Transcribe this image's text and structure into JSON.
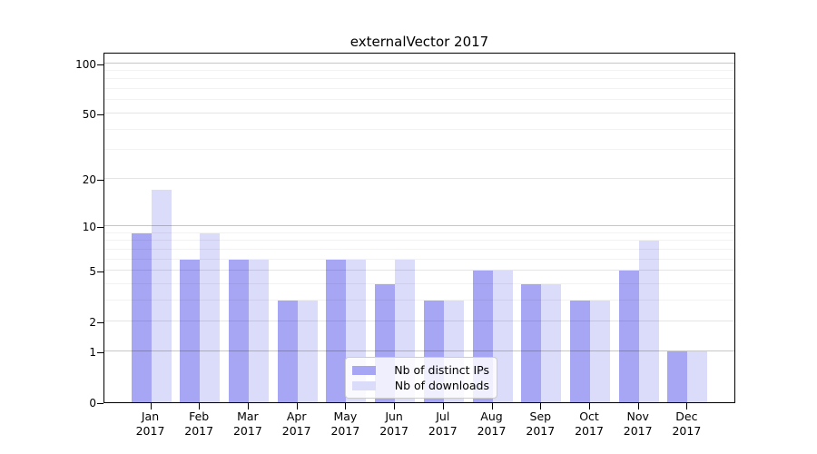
{
  "chart_data": {
    "type": "bar",
    "title": "externalVector 2017",
    "xlabel": "",
    "ylabel": "",
    "categories_line1": [
      "Jan",
      "Feb",
      "Mar",
      "Apr",
      "May",
      "Jun",
      "Jul",
      "Aug",
      "Sep",
      "Oct",
      "Nov",
      "Dec"
    ],
    "categories_line2": [
      "2017",
      "2017",
      "2017",
      "2017",
      "2017",
      "2017",
      "2017",
      "2017",
      "2017",
      "2017",
      "2017",
      "2017"
    ],
    "series": [
      {
        "name": "Nb of distinct IPs",
        "color": "#a6a6f4",
        "values": [
          9,
          6,
          6,
          3,
          6,
          4,
          3,
          5,
          4,
          3,
          5,
          1
        ]
      },
      {
        "name": "Nb of downloads",
        "color": "#dbdbfa",
        "values": [
          17,
          9,
          6,
          3,
          6,
          6,
          3,
          5,
          4,
          3,
          8,
          1
        ]
      }
    ],
    "y_axis": {
      "scale": "log1p",
      "tick_values": [
        0,
        1,
        2,
        5,
        10,
        20,
        50,
        100
      ],
      "tick_labels": [
        "0",
        "1",
        "2",
        "5",
        "10",
        "20",
        "50",
        "100"
      ],
      "ylim": [
        0,
        117
      ],
      "major_grid": [
        1,
        10,
        100
      ],
      "mid_grid": [
        2,
        5,
        20,
        50
      ],
      "minor_grid": [
        3,
        4,
        6,
        7,
        8,
        9,
        30,
        40,
        60,
        70,
        80,
        90
      ]
    },
    "grid": "on",
    "legend_position": "inside-bottom-center"
  }
}
